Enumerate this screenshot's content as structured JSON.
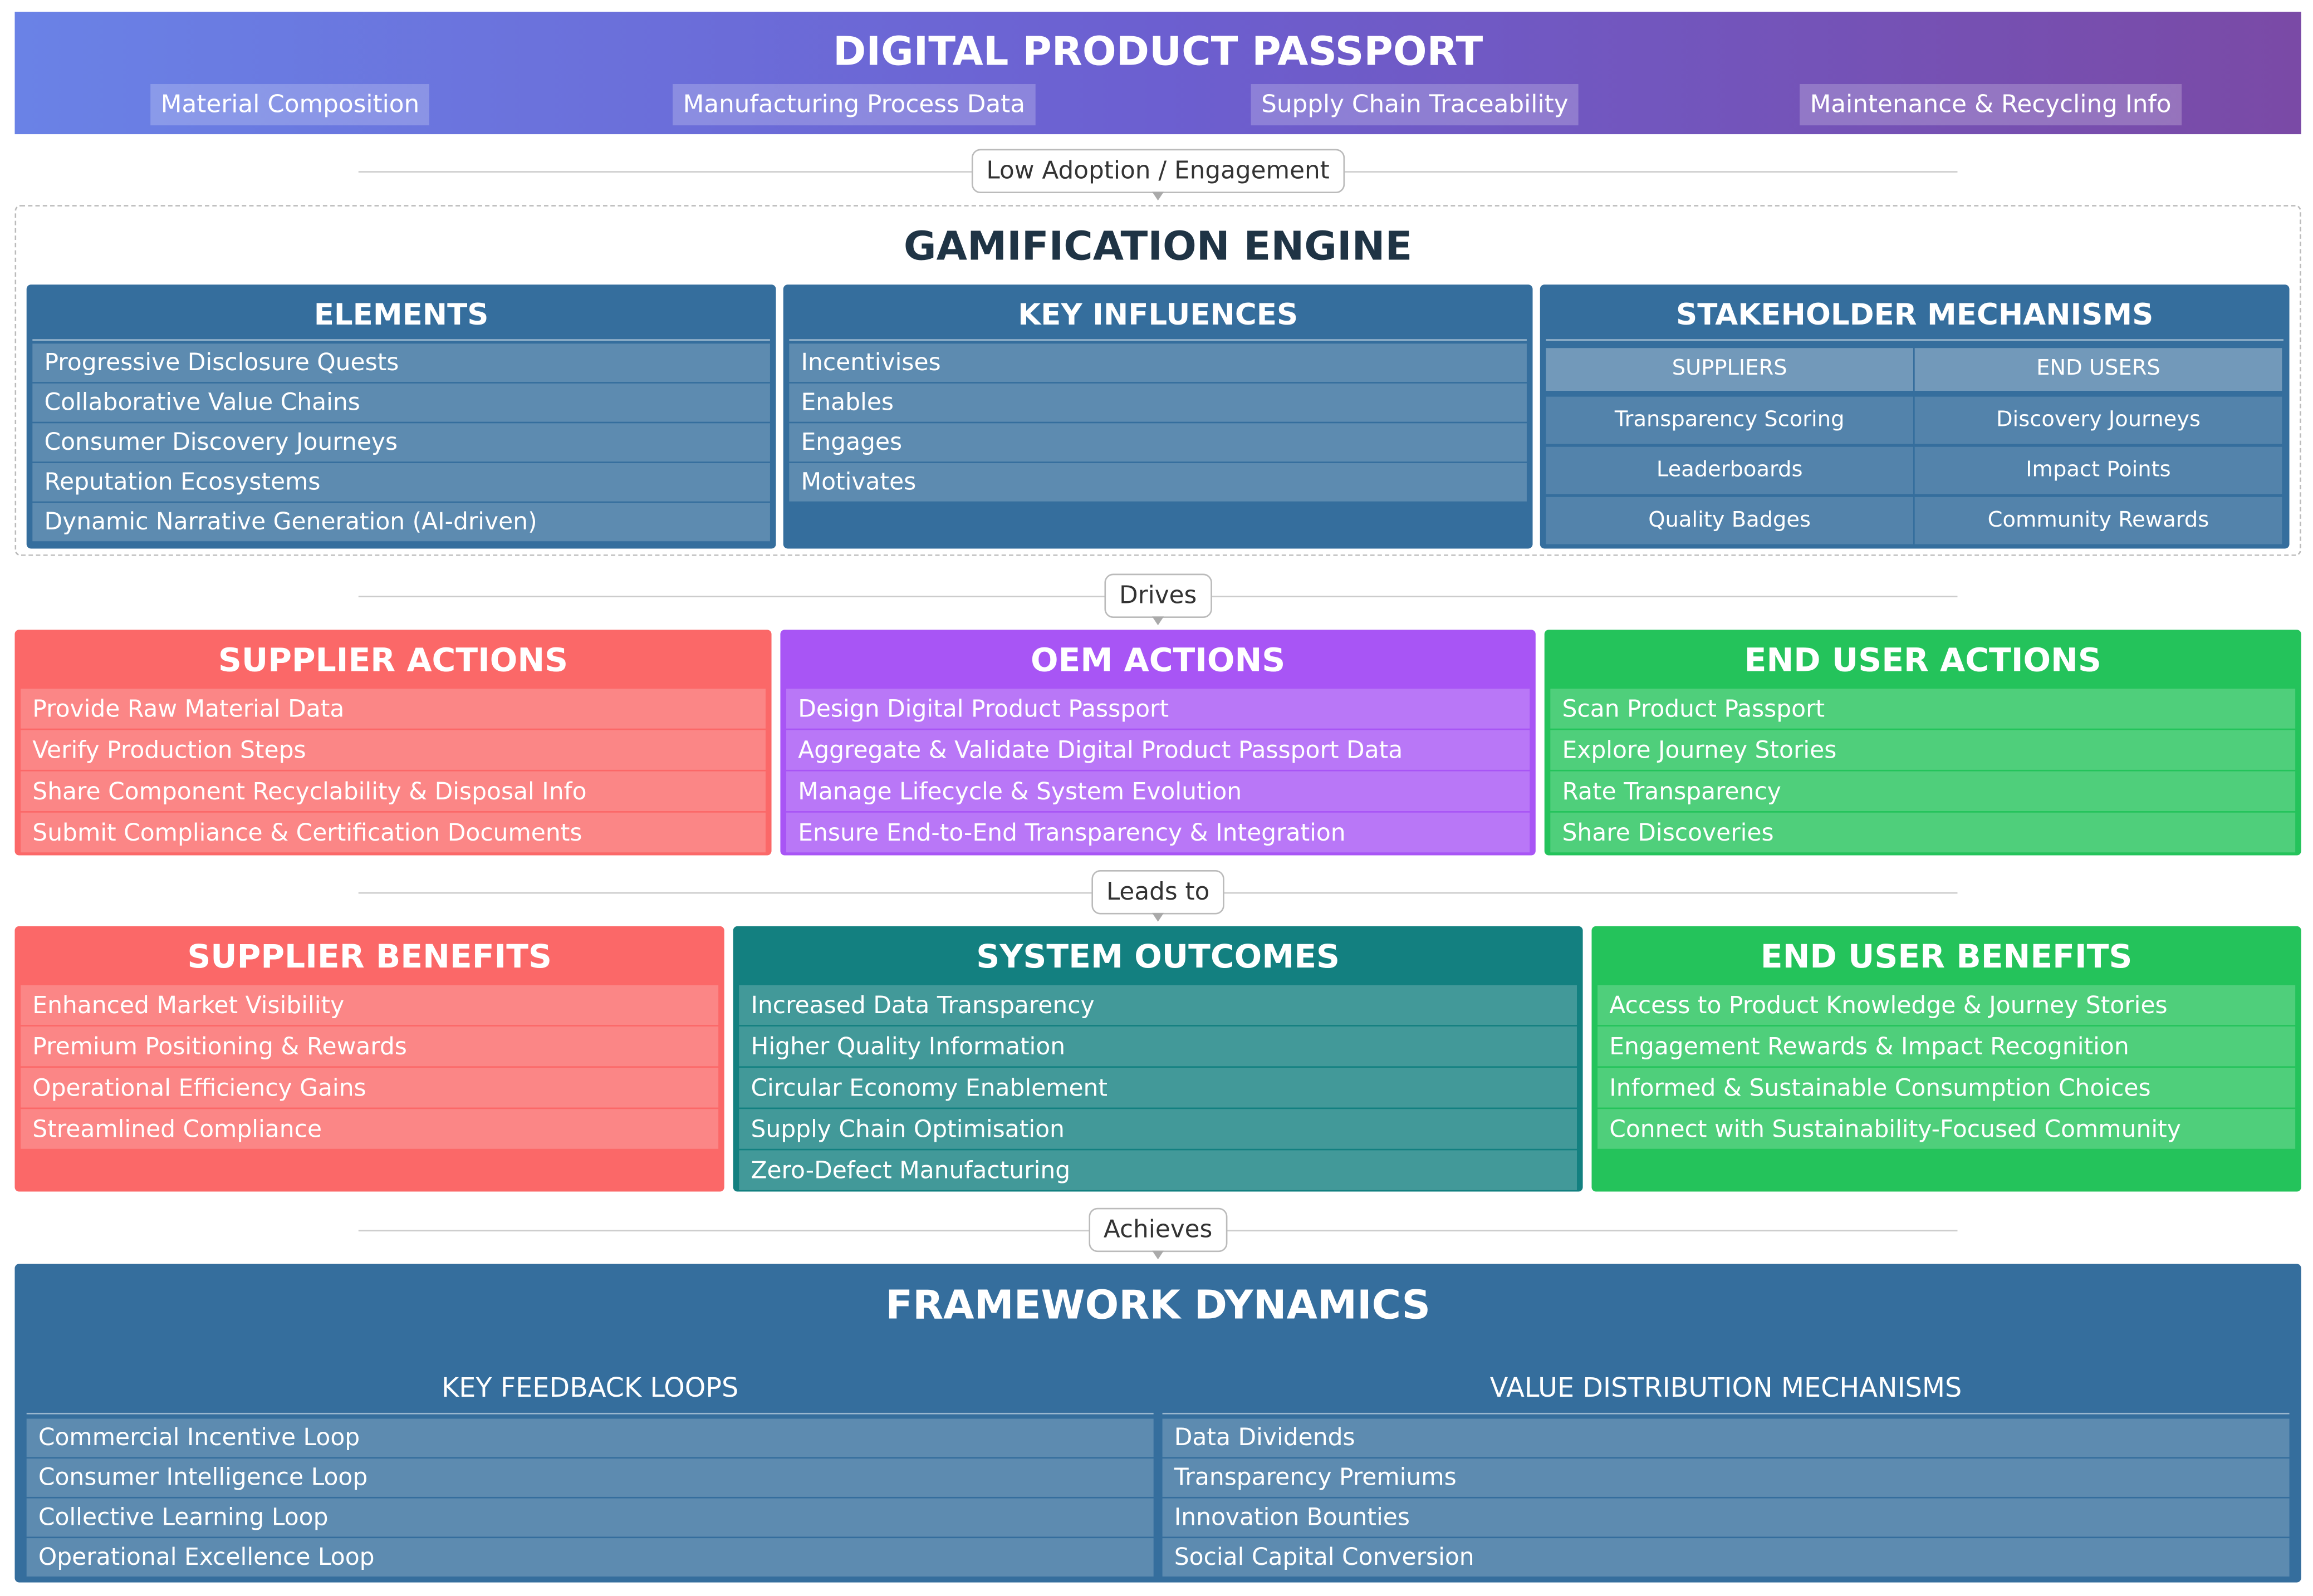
{
  "header": {
    "title": "DIGITAL PRODUCT PASSPORT",
    "tags": [
      "Material Composition",
      "Manufacturing Process Data",
      "Supply Chain Traceability",
      "Maintenance & Recycling Info"
    ]
  },
  "connectors": [
    "Low Adoption / Engagement",
    "Drives",
    "Leads to",
    "Achieves"
  ],
  "gamification_engine": {
    "title": "GAMIFICATION ENGINE",
    "elements": {
      "title": "ELEMENTS",
      "items": [
        "Progressive Disclosure Quests",
        "Collaborative Value Chains",
        "Consumer Discovery Journeys",
        "Reputation Ecosystems",
        "Dynamic Narrative Generation (AI-driven)"
      ]
    },
    "key_influences": {
      "title": "KEY INFLUENCES",
      "items": [
        "Incentivises",
        "Enables",
        "Engages",
        "Motivates"
      ]
    },
    "stakeholder_mechanisms": {
      "title": "STAKEHOLDER MECHANISMS",
      "columns": [
        "SUPPLIERS",
        "END USERS"
      ],
      "rows": [
        [
          "Transparency Scoring",
          "Discovery Journeys"
        ],
        [
          "Leaderboards",
          "Impact Points"
        ],
        [
          "Quality Badges",
          "Community Rewards"
        ]
      ]
    }
  },
  "actions": [
    {
      "title": "SUPPLIER ACTIONS",
      "items": [
        "Provide Raw Material Data",
        "Verify Production Steps",
        "Share Component Recyclability & Disposal Info",
        "Submit Compliance & Certification Documents"
      ]
    },
    {
      "title": "OEM ACTIONS",
      "items": [
        "Design Digital Product Passport",
        "Aggregate & Validate Digital Product Passport Data",
        "Manage Lifecycle & System Evolution",
        "Ensure End-to-End Transparency & Integration"
      ]
    },
    {
      "title": "END USER ACTIONS",
      "items": [
        "Scan Product Passport",
        "Explore Journey Stories",
        "Rate Transparency",
        "Share Discoveries"
      ]
    }
  ],
  "outcomes": [
    {
      "title": "SUPPLIER BENEFITS",
      "items": [
        "Enhanced Market Visibility",
        "Premium Positioning & Rewards",
        "Operational Efficiency Gains",
        "Streamlined Compliance"
      ]
    },
    {
      "title": "SYSTEM OUTCOMES",
      "items": [
        "Increased Data Transparency",
        "Higher Quality Information",
        "Circular Economy Enablement",
        "Supply Chain Optimisation",
        "Zero-Defect Manufacturing"
      ]
    },
    {
      "title": "END USER BENEFITS",
      "items": [
        "Access to Product Knowledge & Journey Stories",
        "Engagement Rewards & Impact Recognition",
        "Informed & Sustainable Consumption Choices",
        "Connect with Sustainability-Focused Community"
      ]
    }
  ],
  "framework_dynamics": {
    "title": "FRAMEWORK DYNAMICS",
    "groups": [
      {
        "title": "KEY FEEDBACK LOOPS",
        "items": [
          "Commercial Incentive Loop",
          "Consumer Intelligence Loop",
          "Collective Learning Loop",
          "Operational Excellence Loop"
        ]
      },
      {
        "title": "VALUE DISTRIBUTION MECHANISMS",
        "items": [
          "Data Dividends",
          "Transparency Premiums",
          "Innovation Bounties",
          "Social Capital Conversion"
        ]
      }
    ]
  }
}
